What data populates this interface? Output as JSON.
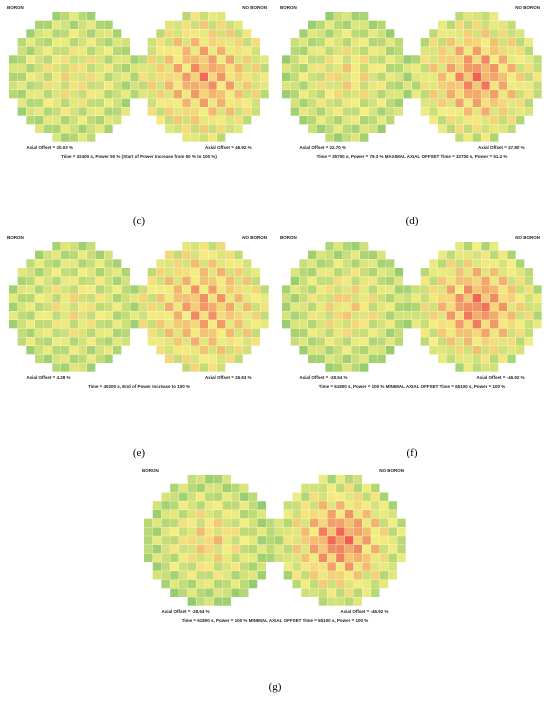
{
  "figure": {
    "panels": [
      {
        "id": "c",
        "caption": "(c)",
        "left_title": "BORON",
        "right_title": "NO BORON",
        "left_offset": "Axial Offset = 20.03 %",
        "right_offset": "Axial Offset = 46.92 %",
        "time_text": "Time = 32400 s, Power 50 % (Start of Power Increase from 50 % to 100 %)",
        "heat": 0.35
      },
      {
        "id": "d",
        "caption": "(d)",
        "left_title": "BORON",
        "right_title": "NO BORON",
        "left_offset": "Axial Offset = 22.70 %",
        "right_offset": "Axial Offset = 47.80 %",
        "time_text": "Time = 35700 s, Power = 79.3 % MAXIMAL AXIAL OFFSET Time = 32700 s, Power = 51.2 %",
        "heat": 0.45
      },
      {
        "id": "e",
        "caption": "(e)",
        "left_title": "BORON",
        "right_title": "NO BORON",
        "left_offset": "Axial Offset = 4.28 %",
        "right_offset": "Axial Offset = 26.63 %",
        "time_text": "Time = 40200 s, End of Power Increase to 100 %",
        "heat": 0.3
      },
      {
        "id": "f",
        "caption": "(f)",
        "left_title": "BORON",
        "right_title": "NO BORON",
        "left_offset": "Axial Offset = -28.54 %",
        "right_offset": "Axial Offset = -46.92 %",
        "time_text": "Time = 61800 s, Power = 100 % MINIMAL AXIAL OFFSET Time = 65100 s, Power = 100 %",
        "heat": 0.5
      },
      {
        "id": "g",
        "caption": "(g)",
        "left_title": "BORON",
        "right_title": "NO BORON",
        "left_offset": "Axial Offset = -28.54 %",
        "right_offset": "Axial Offset = -46.92 %",
        "time_text": "Time = 61800 s, Power = 100 % MINIMAL AXIAL OFFSET Time = 65100 s, Power = 100 %",
        "heat": 0.55
      }
    ],
    "colors": {
      "low": "#7cc36a",
      "mid": "#f5ee80",
      "high": "#ef4e4e"
    }
  }
}
